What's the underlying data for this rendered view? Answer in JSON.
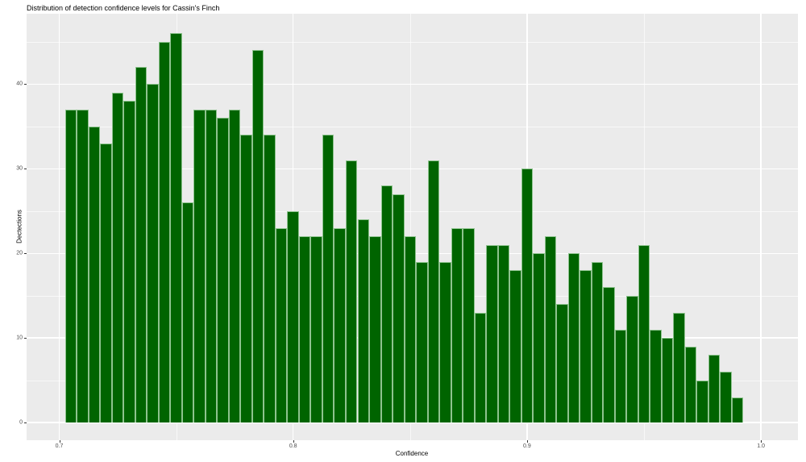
{
  "title": "Distribution of detection confidence levels for Cassin's Finch",
  "chart_data": {
    "type": "bar",
    "subtype": "histogram",
    "title": "Distribution of detection confidence levels for Cassin's Finch",
    "xlabel": "Confidence",
    "ylabel": "Dectections",
    "xlim": [
      0.7,
      1.0
    ],
    "ylim": [
      0,
      46
    ],
    "grid": "on",
    "legend": "none",
    "x_major_ticks": [
      0.7,
      0.8,
      0.9,
      1.0
    ],
    "x_tick_labels": [
      "0.7",
      "0.8",
      "0.9",
      "1.0"
    ],
    "y_major_ticks": [
      0,
      10,
      20,
      30,
      40
    ],
    "y_tick_labels": [
      "0",
      "10",
      "20",
      "30",
      "40"
    ],
    "y_minor_ticks": [
      5,
      15,
      25,
      35,
      45
    ],
    "x_minor_ticks": [
      0.75,
      0.85,
      0.95
    ],
    "bin_width": 0.005,
    "bin_center_start": 0.705,
    "values": [
      37,
      37,
      35,
      33,
      39,
      38,
      42,
      40,
      45,
      46,
      26,
      37,
      37,
      36,
      37,
      34,
      44,
      34,
      23,
      25,
      22,
      22,
      34,
      23,
      31,
      24,
      22,
      28,
      27,
      22,
      19,
      31,
      19,
      23,
      23,
      13,
      21,
      21,
      18,
      30,
      20,
      22,
      14,
      20,
      18,
      19,
      16,
      11,
      15,
      21,
      11,
      10,
      13,
      9,
      5,
      8,
      6,
      3
    ],
    "colors": {
      "bar_fill": "#006400",
      "bar_border": "#a7d3a7",
      "panel_background": "#ebebeb",
      "gridline": "#ffffff",
      "tick_label": "#4d4d4d",
      "text": "#000000"
    }
  }
}
